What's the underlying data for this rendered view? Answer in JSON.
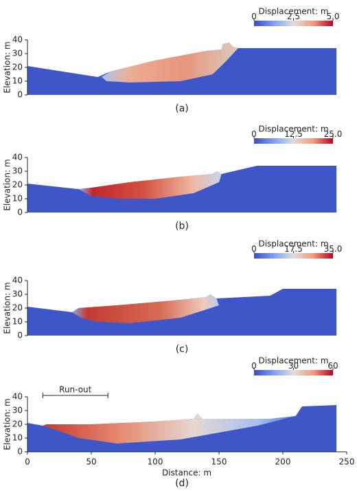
{
  "chart_data": [
    {
      "type": "field",
      "ylabel": "Elevation: m",
      "ylim": [
        0,
        40
      ],
      "yticks": [
        0,
        10,
        20,
        30,
        40
      ],
      "label": "(a)",
      "colorbar": {
        "title": "Displacement: m",
        "lim": [
          0,
          5
        ],
        "ticks": [
          0,
          2.5,
          {
            "value": 5,
            "label": "5.0"
          }
        ]
      }
    },
    {
      "type": "field",
      "ylabel": "Elevation: m",
      "ylim": [
        0,
        40
      ],
      "yticks": [
        0,
        10,
        20,
        30,
        40
      ],
      "label": "(b)",
      "colorbar": {
        "title": "Displacement: m",
        "lim": [
          0,
          25
        ],
        "ticks": [
          0,
          12.5,
          {
            "value": 25,
            "label": "25.0"
          }
        ]
      }
    },
    {
      "type": "field",
      "ylabel": "Elevation: m",
      "ylim": [
        0,
        40
      ],
      "yticks": [
        0,
        10,
        20,
        30,
        40
      ],
      "label": "(c)",
      "colorbar": {
        "title": "Displacement: m",
        "lim": [
          0,
          35
        ],
        "ticks": [
          0,
          17.5,
          {
            "value": 35,
            "label": "35.0"
          }
        ]
      }
    },
    {
      "type": "field",
      "ylabel": "Elevation: m",
      "ylim": [
        0,
        40
      ],
      "yticks": [
        0,
        10,
        20,
        30,
        40
      ],
      "label": "(d)",
      "xlabel": "Distance: m",
      "xlim": [
        0,
        250
      ],
      "xticks": [
        0,
        50,
        100,
        150,
        200,
        250
      ],
      "annotation": {
        "text": "Run-out",
        "x": [
          12,
          63
        ]
      },
      "colorbar": {
        "title": "Displacement: m",
        "lim": [
          0,
          60
        ],
        "ticks": [
          0,
          30,
          60
        ]
      }
    }
  ]
}
